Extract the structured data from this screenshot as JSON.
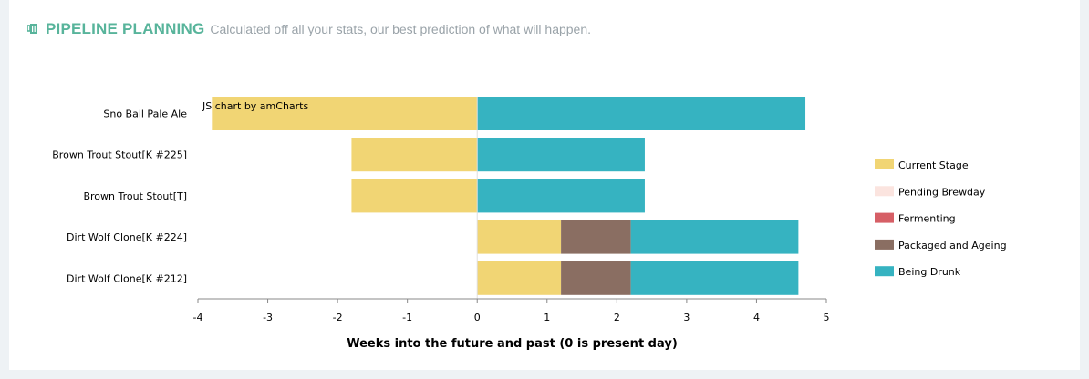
{
  "header": {
    "title": "PIPELINE PLANNING",
    "subtitle": "Calculated off all your stats, our best prediction of what will happen."
  },
  "chart_data": {
    "type": "bar",
    "orientation": "horizontal",
    "stacked": true,
    "credit": "JS chart by amCharts",
    "xlabel": "Weeks into the future and past (0 is present day)",
    "xlim": [
      -4,
      5
    ],
    "xticks": [
      -4,
      -3,
      -2,
      -1,
      0,
      1,
      2,
      3,
      4,
      5
    ],
    "grid": false,
    "legend_position": "right",
    "categories": [
      "Sno Ball Pale Ale",
      "Brown Trout Stout[K #225]",
      "Brown Trout Stout[T]",
      "Dirt Wolf Clone[K #224]",
      "Dirt Wolf Clone[K #212]"
    ],
    "series": [
      {
        "name": "Current Stage",
        "color": "#f1d574"
      },
      {
        "name": "Pending Brewday",
        "color": "#fbe4df"
      },
      {
        "name": "Fermenting",
        "color": "#d65f66"
      },
      {
        "name": "Packaged and Ageing",
        "color": "#8a6e62"
      },
      {
        "name": "Being Drunk",
        "color": "#36b3c1"
      }
    ],
    "segments": [
      [
        {
          "series": "Current Stage",
          "start": -3.8,
          "end": 0
        },
        {
          "series": "Being Drunk",
          "start": 0,
          "end": 4.7
        }
      ],
      [
        {
          "series": "Current Stage",
          "start": -1.8,
          "end": 0
        },
        {
          "series": "Being Drunk",
          "start": 0,
          "end": 2.4
        }
      ],
      [
        {
          "series": "Current Stage",
          "start": -1.8,
          "end": 0
        },
        {
          "series": "Being Drunk",
          "start": 0,
          "end": 2.4
        }
      ],
      [
        {
          "series": "Current Stage",
          "start": 0,
          "end": 1.2
        },
        {
          "series": "Packaged and Ageing",
          "start": 1.2,
          "end": 2.2
        },
        {
          "series": "Being Drunk",
          "start": 2.2,
          "end": 4.6
        }
      ],
      [
        {
          "series": "Current Stage",
          "start": 0,
          "end": 1.2
        },
        {
          "series": "Packaged and Ageing",
          "start": 1.2,
          "end": 2.2
        },
        {
          "series": "Being Drunk",
          "start": 2.2,
          "end": 4.6
        }
      ]
    ]
  }
}
